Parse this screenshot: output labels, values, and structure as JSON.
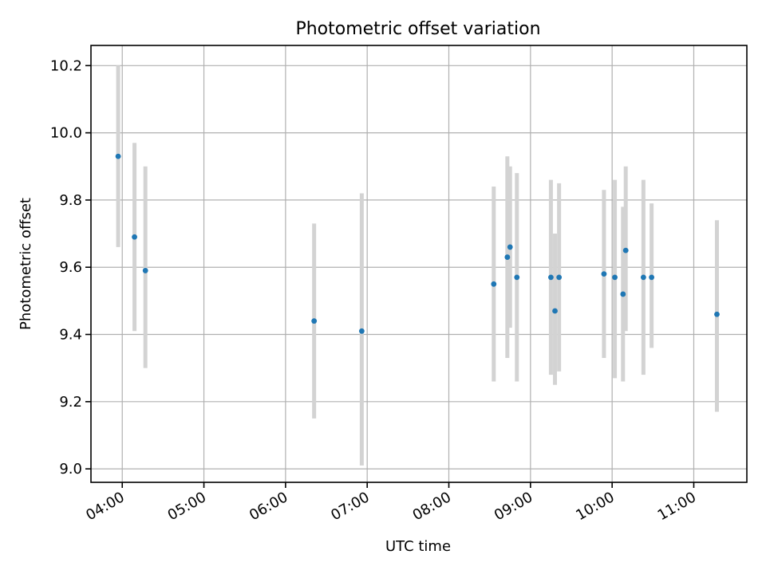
{
  "chart_data": {
    "type": "scatter",
    "title": "Photometric offset variation",
    "xlabel": "UTC time",
    "ylabel": "Photometric offset",
    "xlim": [
      "03:37",
      "11:39"
    ],
    "ylim": [
      8.96,
      10.26
    ],
    "x_ticks": [
      "04:00",
      "05:00",
      "06:00",
      "07:00",
      "08:00",
      "09:00",
      "10:00",
      "11:00"
    ],
    "y_ticks": [
      "9.0",
      "9.2",
      "9.4",
      "9.6",
      "9.8",
      "10.0",
      "10.2"
    ],
    "grid": true,
    "marker_color": "#1f77b4",
    "errorbar_color": "#d3d3d3",
    "points": [
      {
        "x": "03:57",
        "y": 9.93,
        "ymin": 9.66,
        "ymax": 10.2
      },
      {
        "x": "04:09",
        "y": 9.69,
        "ymin": 9.41,
        "ymax": 9.97
      },
      {
        "x": "04:17",
        "y": 9.59,
        "ymin": 9.3,
        "ymax": 9.9
      },
      {
        "x": "06:21",
        "y": 9.44,
        "ymin": 9.15,
        "ymax": 9.73
      },
      {
        "x": "06:56",
        "y": 9.41,
        "ymin": 9.01,
        "ymax": 9.82
      },
      {
        "x": "08:33",
        "y": 9.55,
        "ymin": 9.26,
        "ymax": 9.84
      },
      {
        "x": "08:43",
        "y": 9.63,
        "ymin": 9.33,
        "ymax": 9.93
      },
      {
        "x": "08:45",
        "y": 9.66,
        "ymin": 9.42,
        "ymax": 9.9
      },
      {
        "x": "08:50",
        "y": 9.57,
        "ymin": 9.26,
        "ymax": 9.88
      },
      {
        "x": "09:15",
        "y": 9.57,
        "ymin": 9.28,
        "ymax": 9.86
      },
      {
        "x": "09:18",
        "y": 9.47,
        "ymin": 9.25,
        "ymax": 9.7
      },
      {
        "x": "09:21",
        "y": 9.57,
        "ymin": 9.29,
        "ymax": 9.85
      },
      {
        "x": "09:54",
        "y": 9.58,
        "ymin": 9.33,
        "ymax": 9.83
      },
      {
        "x": "10:02",
        "y": 9.57,
        "ymin": 9.27,
        "ymax": 9.86
      },
      {
        "x": "10:08",
        "y": 9.52,
        "ymin": 9.26,
        "ymax": 9.78
      },
      {
        "x": "10:10",
        "y": 9.65,
        "ymin": 9.41,
        "ymax": 9.9
      },
      {
        "x": "10:23",
        "y": 9.57,
        "ymin": 9.28,
        "ymax": 9.86
      },
      {
        "x": "10:29",
        "y": 9.57,
        "ymin": 9.36,
        "ymax": 9.79
      },
      {
        "x": "11:17",
        "y": 9.46,
        "ymin": 9.17,
        "ymax": 9.74
      }
    ]
  }
}
